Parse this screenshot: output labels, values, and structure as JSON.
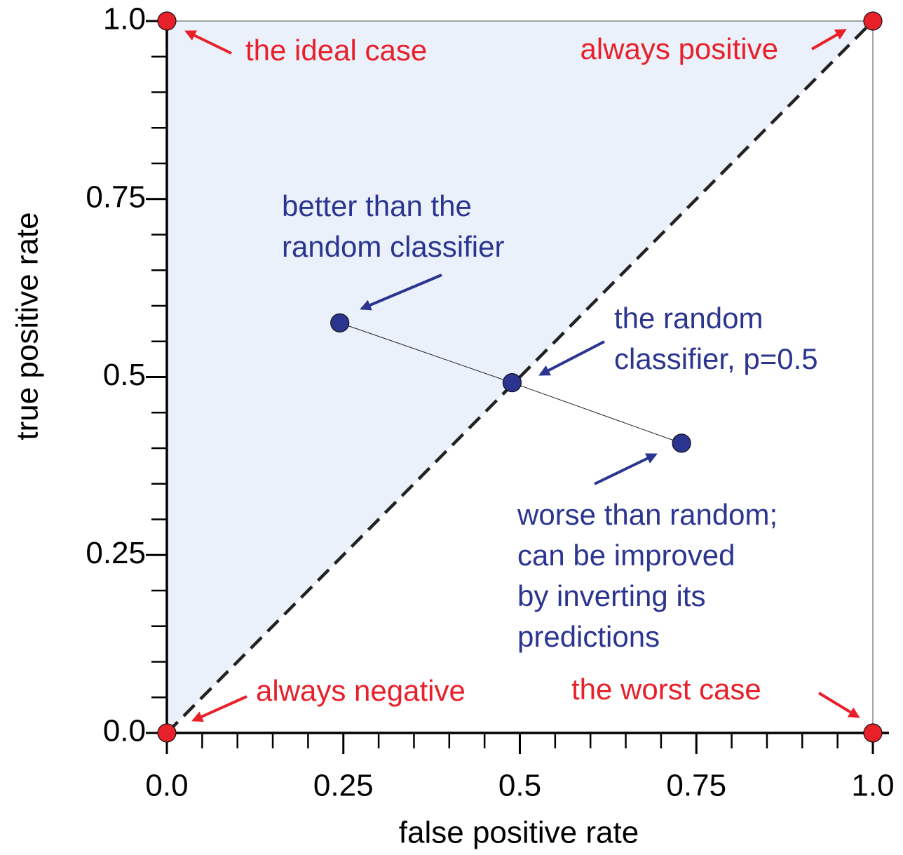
{
  "chart_data": {
    "type": "scatter",
    "xlabel": "false positive rate",
    "ylabel": "true positive rate",
    "xlim": [
      0,
      1
    ],
    "ylim": [
      0,
      1
    ],
    "xticks": [
      {
        "value": 0,
        "label": "0.0"
      },
      0.25,
      0.5,
      0.75,
      {
        "value": 1,
        "label": "1.0"
      }
    ],
    "yticks": [
      {
        "value": 0,
        "label": "0.0"
      },
      0.25,
      0.5,
      0.75,
      {
        "value": 1,
        "label": "1.0"
      }
    ],
    "xminorticks": [
      0.05,
      0.1,
      0.15,
      0.2,
      0.3,
      0.35,
      0.4,
      0.45,
      0.55,
      0.6,
      0.65,
      0.7,
      0.8,
      0.85,
      0.9,
      0.95
    ],
    "yminorticks": [
      0.05,
      0.1,
      0.15,
      0.2,
      0.3,
      0.35,
      0.4,
      0.45,
      0.55,
      0.6,
      0.65,
      0.7,
      0.8,
      0.85,
      0.9,
      0.95
    ],
    "diagonal": true,
    "shade_color": "#eaf1fa",
    "series": [
      {
        "color": "#e8202a",
        "x": [
          0,
          0,
          1,
          1
        ],
        "values": [
          0,
          1,
          1,
          0
        ],
        "connected": false
      },
      {
        "color": "#2b3590",
        "x": [
          0.245,
          0.489,
          0.729
        ],
        "values": [
          0.576,
          0.492,
          0.407
        ],
        "connected": true
      }
    ],
    "annotations": [
      {
        "lines": [
          "the ideal case"
        ],
        "color": "#e8202a"
      },
      {
        "lines": [
          "always positive"
        ],
        "color": "#e8202a"
      },
      {
        "lines": [
          "better than the",
          "random classifier"
        ],
        "color": "#2b3590"
      },
      {
        "lines": [
          "the random",
          "classifier, p=0.5"
        ],
        "color": "#2b3590"
      },
      {
        "lines": [
          "worse than random;",
          "can be improved",
          "by inverting its",
          "predictions"
        ],
        "color": "#2b3590"
      },
      {
        "lines": [
          "always negative"
        ],
        "color": "#e8202a"
      },
      {
        "lines": [
          "the worst case"
        ],
        "color": "#e8202a"
      }
    ]
  }
}
